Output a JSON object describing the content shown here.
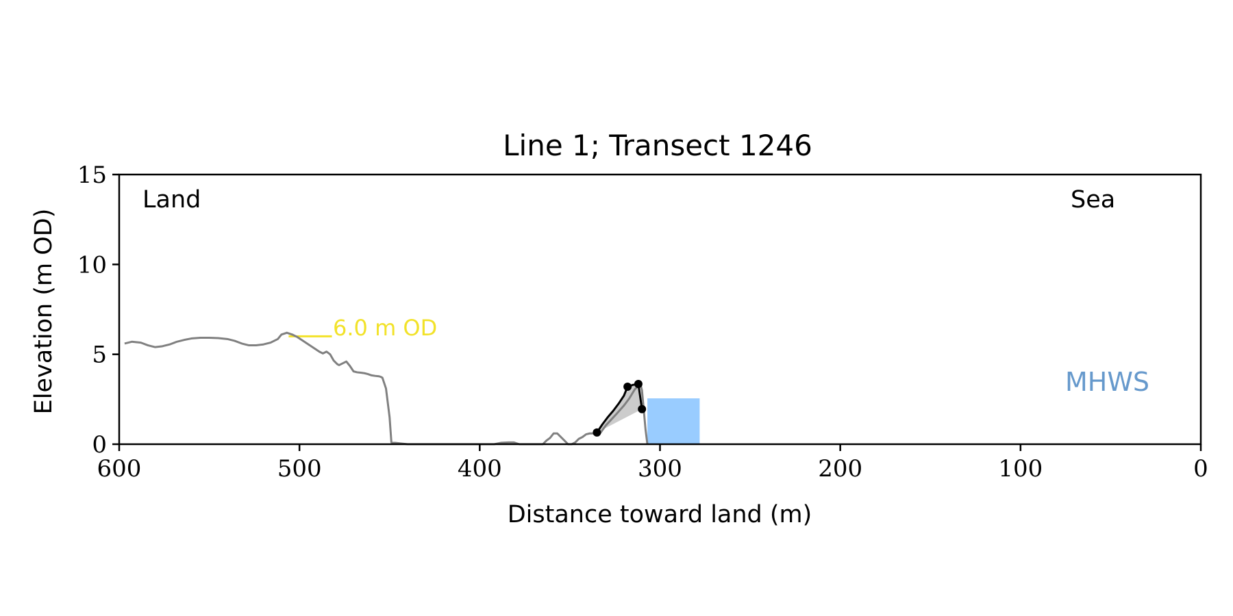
{
  "chart_data": {
    "type": "line",
    "title": "Line 1; Transect 1246",
    "xlabel": "Distance toward land (m)",
    "ylabel": "Elevation (m OD)",
    "xlim": [
      600,
      0
    ],
    "ylim": [
      0,
      15
    ],
    "x_ticks": [
      600,
      500,
      400,
      300,
      200,
      100,
      0
    ],
    "y_ticks": [
      0,
      5,
      10,
      15
    ],
    "grid": false,
    "annotations": {
      "land": "Land",
      "sea": "Sea",
      "mhws": "MHWS",
      "level": "6.0 m OD"
    },
    "colors": {
      "profile": "#808080",
      "dune": "#000000",
      "dune_fill": "#cccccc",
      "mhws": "#99ccff",
      "mhws_text": "#6699cc",
      "level": "#f2e229"
    },
    "reference_level": {
      "value": 6.0,
      "x": [
        506,
        482
      ]
    },
    "mhws_band": {
      "x": [
        307,
        278
      ],
      "y": [
        0,
        2.55
      ]
    },
    "series": [
      {
        "role": "profile",
        "x": [
          597,
          593,
          588,
          584,
          580,
          576,
          572,
          568,
          564,
          560,
          555,
          550,
          545,
          540,
          536,
          532,
          528,
          524,
          520,
          516,
          512,
          510,
          507,
          504,
          501,
          498,
          495,
          492,
          489,
          487,
          485,
          483,
          481,
          479,
          478,
          476,
          474,
          472,
          470,
          468,
          466,
          464,
          462,
          460,
          458,
          456,
          455,
          454,
          452,
          450,
          449,
          440,
          430,
          420,
          410,
          400,
          395,
          392,
          388,
          384,
          381,
          378,
          376,
          372,
          368,
          365,
          363,
          361,
          359,
          357,
          355,
          353,
          351,
          349,
          347,
          345,
          343,
          341,
          339,
          337,
          335,
          334,
          330,
          324,
          320,
          317,
          314,
          312,
          311,
          310,
          309,
          308,
          307
        ],
        "y": [
          5.6,
          5.7,
          5.65,
          5.5,
          5.4,
          5.45,
          5.55,
          5.7,
          5.8,
          5.88,
          5.92,
          5.92,
          5.9,
          5.85,
          5.75,
          5.6,
          5.5,
          5.5,
          5.55,
          5.65,
          5.85,
          6.1,
          6.2,
          6.1,
          5.95,
          5.75,
          5.55,
          5.35,
          5.15,
          5.05,
          5.15,
          5.0,
          4.65,
          4.45,
          4.4,
          4.5,
          4.6,
          4.35,
          4.05,
          4.0,
          3.98,
          3.95,
          3.9,
          3.83,
          3.8,
          3.78,
          3.75,
          3.7,
          3.1,
          1.5,
          0.1,
          0.0,
          0.0,
          0.0,
          0.0,
          0.0,
          0.0,
          0.0,
          0.08,
          0.1,
          0.1,
          0.0,
          0.0,
          0.0,
          0.0,
          0.0,
          0.2,
          0.35,
          0.6,
          0.6,
          0.4,
          0.2,
          0.0,
          0.0,
          0.1,
          0.3,
          0.4,
          0.55,
          0.6,
          0.6,
          0.6,
          0.5,
          1.05,
          1.7,
          2.15,
          2.55,
          3.05,
          3.25,
          3.4,
          3.0,
          1.9,
          0.8,
          0.0
        ]
      },
      {
        "role": "dune-crest",
        "x": [
          335,
          332,
          329,
          326,
          323,
          320,
          318,
          315,
          312,
          310
        ],
        "y": [
          0.65,
          1.1,
          1.5,
          1.85,
          2.25,
          2.7,
          3.2,
          3.3,
          3.35,
          1.95
        ]
      }
    ],
    "markers": {
      "x": [
        335,
        318,
        312,
        310
      ],
      "y": [
        0.65,
        3.2,
        3.35,
        1.95
      ]
    }
  }
}
